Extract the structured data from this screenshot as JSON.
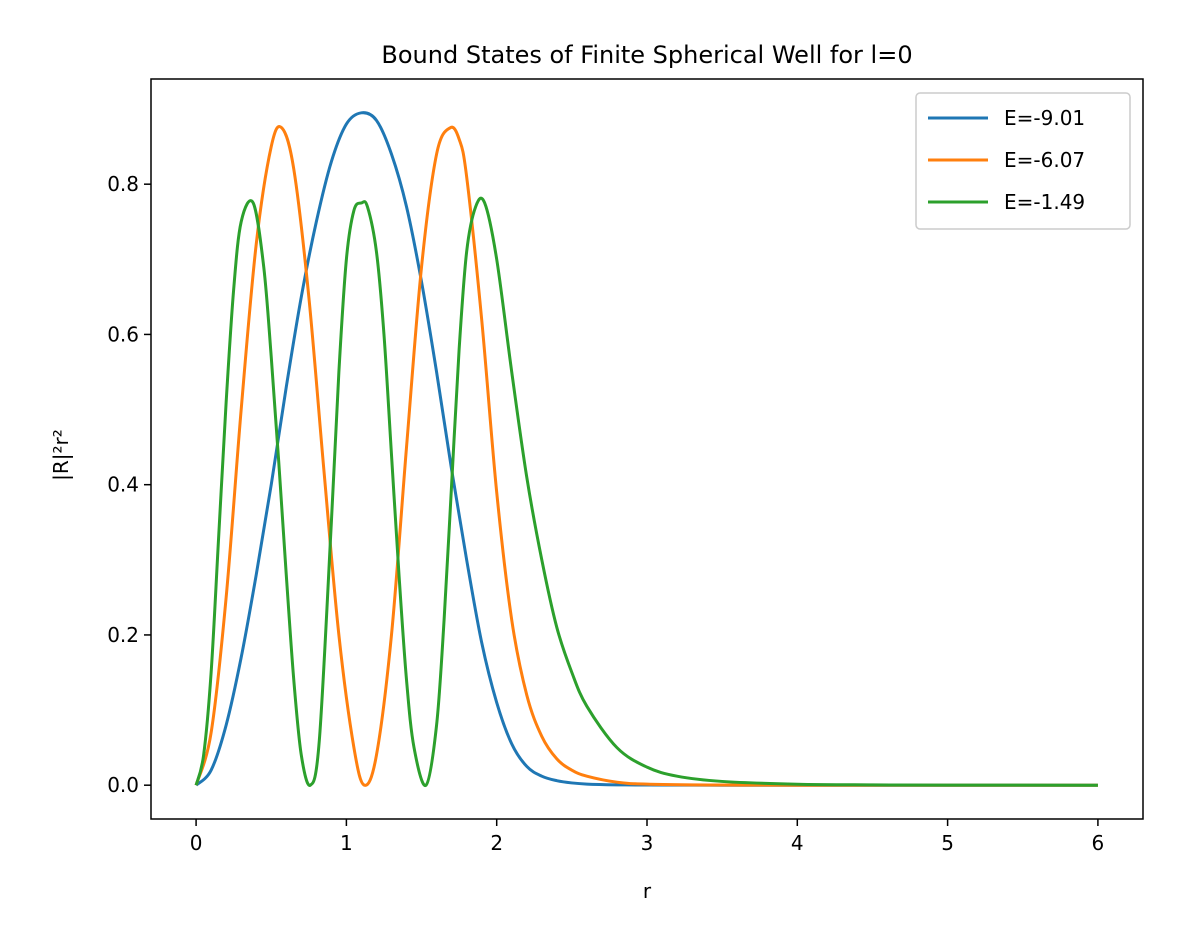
{
  "chart_data": {
    "type": "line",
    "title": "Bound States of Finite Spherical Well for l=0",
    "xlabel": "r",
    "ylabel": "|R|²r²",
    "xlim": [
      -0.3,
      6.3
    ],
    "ylim": [
      -0.045,
      0.94
    ],
    "xticks": [
      0,
      1,
      2,
      3,
      4,
      5,
      6
    ],
    "xtick_labels": [
      "0",
      "1",
      "2",
      "3",
      "4",
      "5",
      "6"
    ],
    "yticks": [
      0.0,
      0.2,
      0.4,
      0.6,
      0.8
    ],
    "ytick_labels": [
      "0.0",
      "0.2",
      "0.4",
      "0.6",
      "0.8"
    ],
    "grid": false,
    "legend_position": "top-right",
    "series": [
      {
        "name": "E=-9.01",
        "color": "#1f77b4",
        "x": [
          0,
          0.1,
          0.2,
          0.3,
          0.4,
          0.5,
          0.6,
          0.7,
          0.8,
          0.9,
          1.0,
          1.1,
          1.2,
          1.3,
          1.4,
          1.5,
          1.6,
          1.7,
          1.8,
          1.9,
          2.0,
          2.1,
          2.2,
          2.3,
          2.4,
          2.5,
          2.6,
          2.8,
          3.0,
          3.5,
          4.0,
          5.0,
          6.0
        ],
        "y": [
          0.0,
          0.02,
          0.08,
          0.17,
          0.28,
          0.4,
          0.53,
          0.65,
          0.75,
          0.83,
          0.88,
          0.895,
          0.885,
          0.84,
          0.77,
          0.67,
          0.55,
          0.42,
          0.3,
          0.19,
          0.11,
          0.055,
          0.025,
          0.012,
          0.006,
          0.003,
          0.0015,
          0.0005,
          0.0002,
          0.0,
          0.0,
          0.0,
          0.0
        ]
      },
      {
        "name": "E=-6.07",
        "color": "#ff7f0e",
        "x": [
          0,
          0.1,
          0.2,
          0.3,
          0.4,
          0.5,
          0.57,
          0.65,
          0.75,
          0.85,
          0.95,
          1.05,
          1.12,
          1.2,
          1.3,
          1.4,
          1.5,
          1.6,
          1.69,
          1.75,
          1.8,
          1.9,
          2.0,
          2.1,
          2.2,
          2.3,
          2.4,
          2.5,
          2.6,
          2.8,
          3.0,
          3.5,
          4.0,
          5.0,
          6.0
        ],
        "y": [
          0.0,
          0.07,
          0.25,
          0.5,
          0.72,
          0.85,
          0.875,
          0.82,
          0.65,
          0.42,
          0.2,
          0.05,
          0.0,
          0.04,
          0.2,
          0.45,
          0.69,
          0.84,
          0.875,
          0.86,
          0.81,
          0.62,
          0.39,
          0.22,
          0.12,
          0.065,
          0.035,
          0.02,
          0.012,
          0.004,
          0.0015,
          0.0002,
          0.0,
          0.0,
          0.0
        ]
      },
      {
        "name": "E=-1.49",
        "color": "#2ca02c",
        "x": [
          0,
          0.05,
          0.1,
          0.15,
          0.2,
          0.25,
          0.3,
          0.38,
          0.45,
          0.5,
          0.55,
          0.6,
          0.65,
          0.7,
          0.76,
          0.82,
          0.9,
          0.95,
          1.0,
          1.05,
          1.1,
          1.14,
          1.2,
          1.25,
          1.3,
          1.35,
          1.4,
          1.45,
          1.53,
          1.6,
          1.65,
          1.7,
          1.75,
          1.8,
          1.86,
          1.92,
          2.0,
          2.1,
          2.2,
          2.3,
          2.4,
          2.5,
          2.6,
          2.8,
          3.0,
          3.2,
          3.5,
          4.0,
          4.5,
          5.0,
          6.0
        ],
        "y": [
          0.0,
          0.04,
          0.15,
          0.33,
          0.51,
          0.66,
          0.75,
          0.775,
          0.69,
          0.57,
          0.43,
          0.28,
          0.14,
          0.04,
          0.0,
          0.06,
          0.35,
          0.55,
          0.7,
          0.765,
          0.775,
          0.77,
          0.71,
          0.6,
          0.44,
          0.28,
          0.14,
          0.05,
          0.0,
          0.08,
          0.22,
          0.4,
          0.58,
          0.71,
          0.77,
          0.775,
          0.7,
          0.55,
          0.41,
          0.3,
          0.21,
          0.15,
          0.105,
          0.05,
          0.024,
          0.012,
          0.005,
          0.0013,
          0.0004,
          0.0001,
          0.0
        ]
      }
    ]
  }
}
